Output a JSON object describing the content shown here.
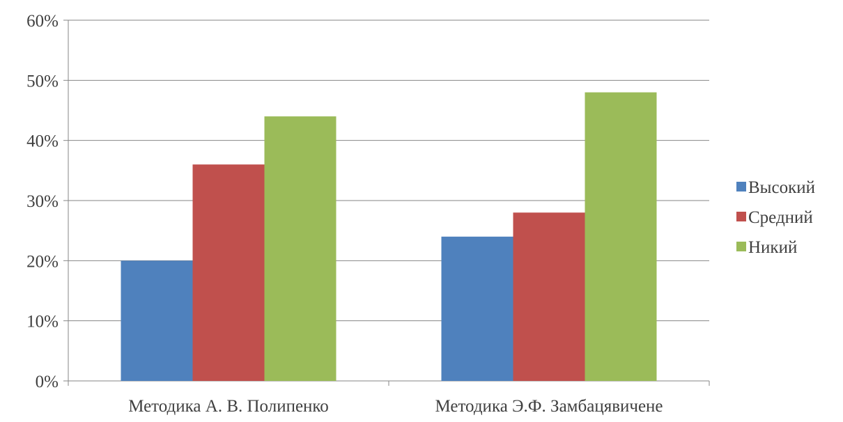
{
  "chart_data": {
    "type": "bar",
    "title": "",
    "xlabel": "",
    "ylabel": "",
    "categories": [
      "Методика А. В. Полипенко",
      "Методика Э.Ф. Замбацявичене"
    ],
    "series": [
      {
        "name": "Высокий",
        "values": [
          20,
          24
        ],
        "color": "#4f81bd"
      },
      {
        "name": "Средний",
        "values": [
          36,
          28
        ],
        "color": "#c0504d"
      },
      {
        "name": "Никий",
        "values": [
          44,
          48
        ],
        "color": "#9bbb59"
      }
    ],
    "ylim": [
      0,
      60
    ],
    "yticks": [
      0,
      10,
      20,
      30,
      40,
      50,
      60
    ],
    "ytick_labels": [
      "0%",
      "10%",
      "20%",
      "30%",
      "40%",
      "50%",
      "60%"
    ],
    "grid": true,
    "legend_position": "right",
    "colors": {
      "gridline": "#868686",
      "axis": "#868686",
      "text": "#404040"
    }
  }
}
